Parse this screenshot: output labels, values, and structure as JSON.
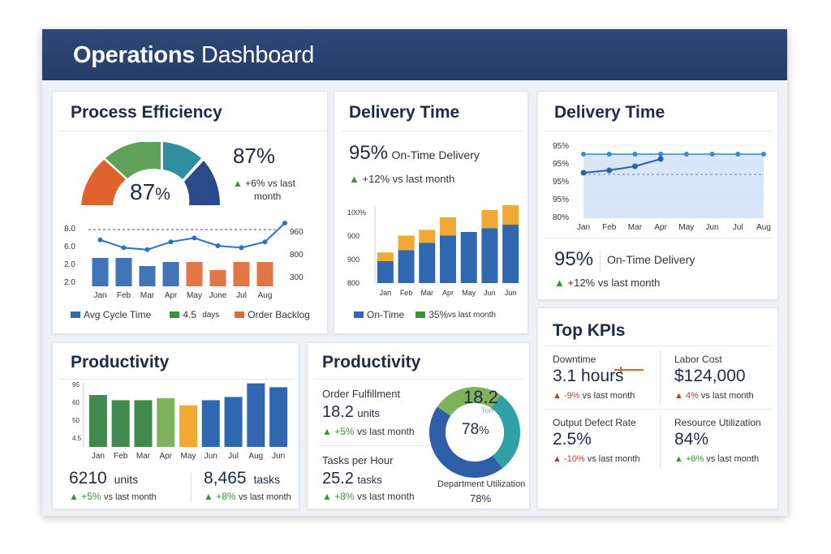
{
  "header": {
    "title_bold": "Operations",
    "title_rest": "Dashboard"
  },
  "process": {
    "title": "Process Efficiency",
    "gauge_value": "87",
    "gauge_unit": "%",
    "kpi_value": "87%",
    "kpi_change": "+6% vs last",
    "kpi_change_2": "month",
    "chart_data": {
      "type": "bar",
      "categories": [
        "Jan",
        "Feb",
        "Mar",
        "Apr",
        "May",
        "June",
        "Jul",
        "Aug"
      ],
      "y_left_ticks": [
        "8.0",
        "6.0",
        "2.0",
        "2.0"
      ],
      "y_right_ticks": [
        "960",
        "800",
        "300"
      ],
      "series": [
        {
          "name": "Avg Cycle Time",
          "color": "#2f68b0",
          "values": [
            7,
            7,
            5,
            6,
            6,
            5,
            5,
            5
          ]
        },
        {
          "name": "Order Backlog",
          "color": "#e06a35",
          "values": [
            0,
            0,
            0,
            0,
            6,
            4,
            6,
            6
          ]
        },
        {
          "name": "line",
          "color": "#2a72c8",
          "values": [
            480,
            440,
            430,
            470,
            490,
            450,
            440,
            470
          ]
        }
      ],
      "legend": [
        {
          "label": "Avg Cycle Time",
          "color": "#2f68b0"
        },
        {
          "label": "4.5",
          "sub": "days",
          "color": "#3f8f3f"
        },
        {
          "label": "Order Backlog",
          "color": "#e06a35"
        }
      ]
    }
  },
  "delivery1": {
    "title": "Delivery Time",
    "kpi_value": "95%",
    "kpi_label": "On-Time Delivery",
    "kpi_change": "+12% vs last month",
    "chart_data": {
      "type": "bar",
      "categories": [
        "Jan",
        "Feb",
        "Mar",
        "Apr",
        "May",
        "Jun",
        "Jun"
      ],
      "y_ticks": [
        "100%",
        "900",
        "900",
        "800"
      ],
      "series": [
        {
          "name": "On-Time",
          "color": "#2f68b0",
          "values": [
            30,
            45,
            55,
            65,
            70,
            75,
            80
          ]
        },
        {
          "name": "35%",
          "color": "#f2a933",
          "values": [
            12,
            20,
            18,
            25,
            0,
            25,
            35
          ]
        }
      ],
      "legend": [
        {
          "label": "On-Time",
          "color": "#2f68b0"
        },
        {
          "label": "35%",
          "sub": "vs last month",
          "color": "#3f8f3f"
        }
      ]
    }
  },
  "delivery2": {
    "title": "Delivery Time",
    "kpi_value": "95%",
    "kpi_label": "On-Time Delivery",
    "kpi_change": "+12% vs last month",
    "chart_data": {
      "type": "area",
      "categories": [
        "Jan",
        "Feb",
        "Mar",
        "Apr",
        "May",
        "Jun",
        "Jul",
        "Aug"
      ],
      "y_ticks": [
        "95%",
        "95%",
        "95%",
        "95%",
        "80%"
      ],
      "series": [
        {
          "name": "line",
          "color": "#2f5fa8",
          "values": [
            86,
            89,
            94,
            103,
            101,
            101,
            102,
            102
          ]
        },
        {
          "name": "target",
          "color": "#3a86d4",
          "values": [
            104,
            104,
            104,
            104,
            104,
            104,
            104,
            104
          ]
        }
      ]
    }
  },
  "productivity1": {
    "title": "Productivity",
    "stat1_value": "6210",
    "stat1_unit": "units",
    "stat1_change": "+5%",
    "stat1_change_suffix": "vs last month",
    "stat2_value": "8,465",
    "stat2_unit": "tasks",
    "stat2_change": "+8%",
    "stat2_change_suffix": "vs last month",
    "chart_data": {
      "type": "bar",
      "categories": [
        "Jan",
        "Feb",
        "Mar",
        "Apr",
        "May",
        "Jun",
        "Jul",
        "Aug",
        "Jun"
      ],
      "y_ticks": [
        "95",
        "60",
        "50",
        "4.5"
      ],
      "series": [
        {
          "name": "bars",
          "values": [
            80,
            72,
            72,
            75,
            64,
            72,
            77,
            98,
            92
          ]
        }
      ],
      "colors": [
        "#3f8a4c",
        "#3f8a4c",
        "#3f8a4c",
        "#7fb35b",
        "#f2a933",
        "#2f68b0",
        "#2f68b0",
        "#2f68b0",
        "#2f68b0"
      ]
    }
  },
  "productivity2": {
    "title": "Productivity",
    "row1_label": "Order Fulfillment",
    "row1_value": "18.2",
    "row1_unit": "units",
    "row1_change": "+5%",
    "row1_change_suffix": "vs last month",
    "row2_label": "Tasks per Hour",
    "row2_value": "25.2",
    "row2_unit": "tasks",
    "row2_change": "+8%",
    "row2_change_suffix": "vs last month",
    "donut_top": "18.2",
    "donut_sub": "Ton",
    "donut_center": "78",
    "donut_center_unit": "%",
    "donut_caption": "Department Utilization",
    "donut_caption_value": "78%",
    "chart_data": {
      "type": "pie",
      "series": [
        {
          "name": "teal",
          "color": "#2fa0a3",
          "value": 30
        },
        {
          "name": "blue",
          "color": "#2f5fa8",
          "value": 45
        },
        {
          "name": "green",
          "color": "#7fb35b",
          "value": 25
        }
      ]
    }
  },
  "topkpis": {
    "title": "Top KPIs",
    "items": [
      {
        "label": "Downtime",
        "value": "3.1 hours",
        "change": "-9%",
        "suffix": "vs last month",
        "dir": "up-red"
      },
      {
        "label": "Labor Cost",
        "value": "$124,000",
        "change": "4%",
        "suffix": "vs last month",
        "dir": "up-red"
      },
      {
        "label": "Output Defect Rate",
        "value": "2.5%",
        "change": "-10%",
        "suffix": "vs last month",
        "dir": "up-red"
      },
      {
        "label": "Resource Utilization",
        "value": "84%",
        "change": "+6%",
        "suffix": "vs last month",
        "dir": "up-green"
      }
    ]
  }
}
